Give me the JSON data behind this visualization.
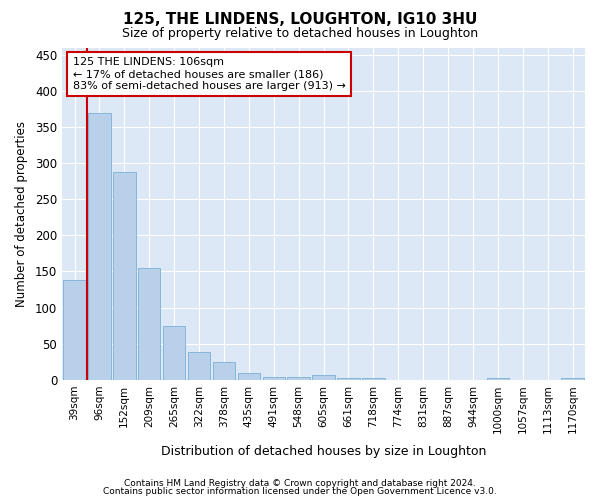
{
  "title1": "125, THE LINDENS, LOUGHTON, IG10 3HU",
  "title2": "Size of property relative to detached houses in Loughton",
  "xlabel": "Distribution of detached houses by size in Loughton",
  "ylabel": "Number of detached properties",
  "categories": [
    "39sqm",
    "96sqm",
    "152sqm",
    "209sqm",
    "265sqm",
    "322sqm",
    "378sqm",
    "435sqm",
    "491sqm",
    "548sqm",
    "605sqm",
    "661sqm",
    "718sqm",
    "774sqm",
    "831sqm",
    "887sqm",
    "944sqm",
    "1000sqm",
    "1057sqm",
    "1113sqm",
    "1170sqm"
  ],
  "values": [
    138,
    370,
    287,
    155,
    75,
    38,
    25,
    10,
    4,
    4,
    6,
    2,
    2,
    0,
    0,
    0,
    0,
    3,
    0,
    0,
    3
  ],
  "bar_color": "#b8d0ea",
  "bar_edge_color": "#7aafd4",
  "vline_color": "#cc0000",
  "vline_x": 0.5,
  "annotation_text": "125 THE LINDENS: 106sqm\n← 17% of detached houses are smaller (186)\n83% of semi-detached houses are larger (913) →",
  "annotation_box_color": "#ffffff",
  "annotation_box_edge": "#cc0000",
  "footnote1": "Contains HM Land Registry data © Crown copyright and database right 2024.",
  "footnote2": "Contains public sector information licensed under the Open Government Licence v3.0.",
  "bg_color": "#ffffff",
  "plot_bg_color": "#dce8f5",
  "grid_color": "#ffffff",
  "ylim": [
    0,
    460
  ],
  "yticks": [
    0,
    50,
    100,
    150,
    200,
    250,
    300,
    350,
    400,
    450
  ]
}
